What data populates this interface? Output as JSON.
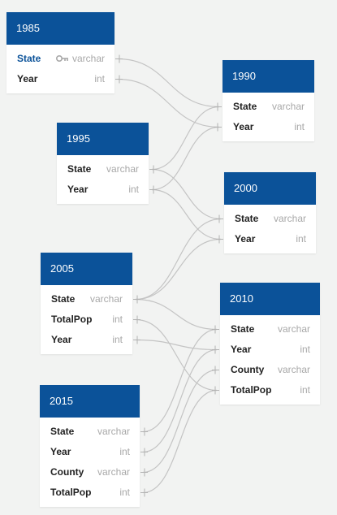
{
  "tables": [
    {
      "id": "t1985",
      "name": "1985",
      "fields": [
        {
          "name": "State",
          "type": "varchar",
          "primary_key": true
        },
        {
          "name": "Year",
          "type": "int"
        }
      ]
    },
    {
      "id": "t1990",
      "name": "1990",
      "fields": [
        {
          "name": "State",
          "type": "varchar"
        },
        {
          "name": "Year",
          "type": "int"
        }
      ]
    },
    {
      "id": "t1995",
      "name": "1995",
      "fields": [
        {
          "name": "State",
          "type": "varchar"
        },
        {
          "name": "Year",
          "type": "int"
        }
      ]
    },
    {
      "id": "t2000",
      "name": "2000",
      "fields": [
        {
          "name": "State",
          "type": "varchar"
        },
        {
          "name": "Year",
          "type": "int"
        }
      ]
    },
    {
      "id": "t2005",
      "name": "2005",
      "fields": [
        {
          "name": "State",
          "type": "varchar"
        },
        {
          "name": "TotalPop",
          "type": "int"
        },
        {
          "name": "Year",
          "type": "int"
        }
      ]
    },
    {
      "id": "t2010",
      "name": "2010",
      "fields": [
        {
          "name": "State",
          "type": "varchar"
        },
        {
          "name": "Year",
          "type": "int"
        },
        {
          "name": "County",
          "type": "varchar"
        },
        {
          "name": "TotalPop",
          "type": "int"
        }
      ]
    },
    {
      "id": "t2015",
      "name": "2015",
      "fields": [
        {
          "name": "State",
          "type": "varchar"
        },
        {
          "name": "Year",
          "type": "int"
        },
        {
          "name": "County",
          "type": "varchar"
        },
        {
          "name": "TotalPop",
          "type": "int"
        }
      ]
    }
  ],
  "relations": [
    {
      "from": "t1985.State",
      "to": "t1990.State"
    },
    {
      "from": "t1985.Year",
      "to": "t1990.Year"
    },
    {
      "from": "t1995.State",
      "to": "t1990.State"
    },
    {
      "from": "t1995.Year",
      "to": "t1990.Year"
    },
    {
      "from": "t1995.State",
      "to": "t2000.State"
    },
    {
      "from": "t1995.Year",
      "to": "t2000.Year"
    },
    {
      "from": "t2005.State",
      "to": "t2000.State"
    },
    {
      "from": "t2005.State",
      "to": "t2000.Year"
    },
    {
      "from": "t2005.State",
      "to": "t2010.State"
    },
    {
      "from": "t2005.TotalPop",
      "to": "t2010.TotalPop"
    },
    {
      "from": "t2005.Year",
      "to": "t2010.Year"
    },
    {
      "from": "t2015.State",
      "to": "t2010.State"
    },
    {
      "from": "t2015.Year",
      "to": "t2010.Year"
    },
    {
      "from": "t2015.County",
      "to": "t2010.County"
    },
    {
      "from": "t2015.TotalPop",
      "to": "t2010.TotalPop"
    }
  ],
  "colors": {
    "header": "#0b5299",
    "primary_key_text": "#0b5299",
    "type_text": "#a8a8a8",
    "link": "#c4c4c4"
  }
}
